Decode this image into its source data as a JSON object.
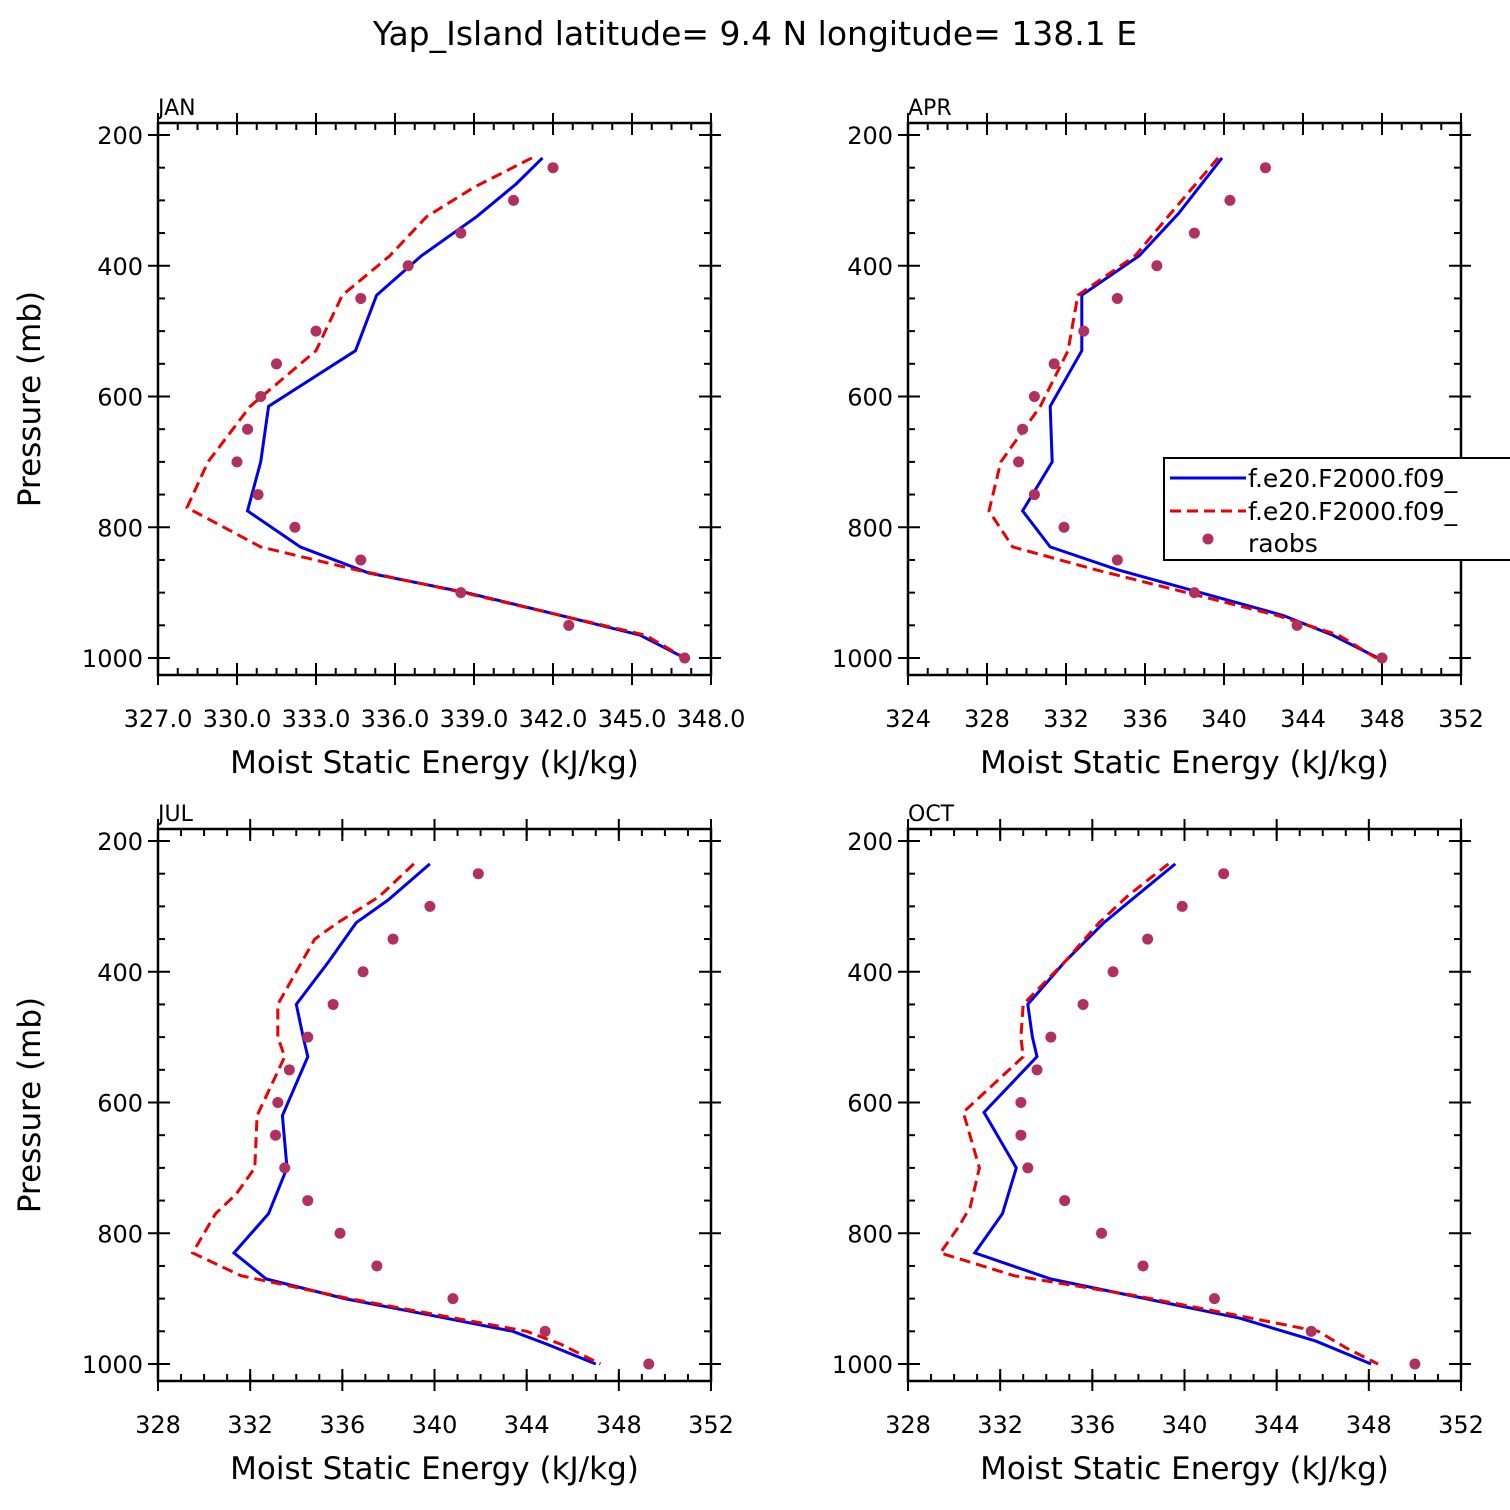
{
  "title": "Yap_Island  latitude= 9.4 N longitude= 138.1 E",
  "colors": {
    "model1": "#0000ee",
    "model2": "#ee0000",
    "raobs": "#b03060"
  },
  "legend": {
    "placement": "right-of-APR-panel",
    "entries": [
      {
        "label": "f.e20.F2000.f09_",
        "style": "solid",
        "color": "#0000ee"
      },
      {
        "label": "f.e20.F2000.f09_",
        "style": "dashed",
        "color": "#ee0000"
      },
      {
        "label": "raobs",
        "style": "dot",
        "color": "#b03060"
      }
    ]
  },
  "chart_data": [
    {
      "panel": "JAN",
      "type": "line",
      "xlabel": "Moist Static Energy (kJ/kg)",
      "ylabel": "Pressure (mb)",
      "xlim": [
        327.0,
        348.0
      ],
      "ylim": [
        1000,
        200
      ],
      "xticks": [
        "327.0",
        "330.0",
        "333.0",
        "336.0",
        "339.0",
        "342.0",
        "345.0",
        "348.0"
      ],
      "x_tick_values": [
        327,
        330,
        333,
        336,
        339,
        342,
        345,
        348
      ],
      "yticks": [
        200,
        400,
        600,
        800,
        1000
      ],
      "series": [
        {
          "style": "solid",
          "color": "#0000ee",
          "points": [
            [
              341.6,
              235
            ],
            [
              340.6,
              275
            ],
            [
              339.1,
              325
            ],
            [
              337.0,
              385
            ],
            [
              335.3,
              445
            ],
            [
              334.5,
              530
            ],
            [
              331.2,
              615
            ],
            [
              330.9,
              700
            ],
            [
              330.4,
              775
            ],
            [
              332.4,
              830
            ],
            [
              335.0,
              870
            ],
            [
              338.7,
              900
            ],
            [
              342.3,
              935
            ],
            [
              345.3,
              965
            ],
            [
              347.0,
              1000
            ]
          ]
        },
        {
          "style": "dashed",
          "color": "#ee0000",
          "points": [
            [
              341.2,
              235
            ],
            [
              339.0,
              280
            ],
            [
              337.2,
              325
            ],
            [
              335.8,
              385
            ],
            [
              334.0,
              445
            ],
            [
              333.0,
              530
            ],
            [
              330.5,
              615
            ],
            [
              328.9,
              700
            ],
            [
              328.1,
              770
            ],
            [
              330.9,
              830
            ],
            [
              334.5,
              865
            ],
            [
              338.6,
              900
            ],
            [
              342.3,
              935
            ],
            [
              345.5,
              965
            ],
            [
              347.0,
              1000
            ]
          ]
        }
      ],
      "raobs": {
        "x": [
          342.0,
          340.5,
          338.5,
          336.5,
          334.7,
          333.0,
          331.5,
          330.9,
          330.4,
          330.0,
          330.8,
          332.2,
          334.7,
          338.5,
          342.6,
          347.0
        ],
        "p": [
          250,
          300,
          350,
          400,
          450,
          500,
          550,
          600,
          650,
          700,
          750,
          800,
          850,
          900,
          950,
          1000
        ]
      }
    },
    {
      "panel": "APR",
      "type": "line",
      "xlabel": "Moist Static Energy (kJ/kg)",
      "ylabel": "",
      "xlim": [
        324,
        352
      ],
      "ylim": [
        1000,
        200
      ],
      "xticks": [
        "324",
        "328",
        "332",
        "336",
        "340",
        "344",
        "348",
        "352"
      ],
      "x_tick_values": [
        324,
        328,
        332,
        336,
        340,
        344,
        348,
        352
      ],
      "yticks": [
        200,
        400,
        600,
        800,
        1000
      ],
      "series": [
        {
          "style": "solid",
          "color": "#0000ee",
          "points": [
            [
              339.9,
              235
            ],
            [
              337.7,
              320
            ],
            [
              335.7,
              385
            ],
            [
              332.8,
              445
            ],
            [
              332.8,
              530
            ],
            [
              331.2,
              615
            ],
            [
              331.3,
              700
            ],
            [
              329.8,
              775
            ],
            [
              331.2,
              830
            ],
            [
              334.6,
              865
            ],
            [
              338.8,
              900
            ],
            [
              343.0,
              935
            ],
            [
              345.5,
              965
            ],
            [
              347.8,
              1000
            ]
          ]
        },
        {
          "style": "dashed",
          "color": "#ee0000",
          "points": [
            [
              339.7,
              235
            ],
            [
              337.3,
              320
            ],
            [
              335.5,
              385
            ],
            [
              332.6,
              445
            ],
            [
              332.1,
              530
            ],
            [
              330.7,
              615
            ],
            [
              328.7,
              700
            ],
            [
              328.1,
              775
            ],
            [
              329.3,
              830
            ],
            [
              333.5,
              865
            ],
            [
              338.1,
              900
            ],
            [
              342.7,
              935
            ],
            [
              345.8,
              965
            ],
            [
              347.7,
              1000
            ]
          ]
        }
      ],
      "raobs": {
        "x": [
          342.1,
          340.3,
          338.5,
          336.6,
          334.6,
          332.9,
          331.4,
          330.4,
          329.8,
          329.6,
          330.4,
          331.9,
          334.6,
          338.5,
          343.7,
          348.0
        ],
        "p": [
          250,
          300,
          350,
          400,
          450,
          500,
          550,
          600,
          650,
          700,
          750,
          800,
          850,
          900,
          950,
          1000
        ]
      }
    },
    {
      "panel": "JUL",
      "type": "line",
      "xlabel": "Moist Static Energy (kJ/kg)",
      "ylabel": "Pressure (mb)",
      "xlim": [
        328,
        352
      ],
      "ylim": [
        1000,
        200
      ],
      "xticks": [
        "328",
        "332",
        "336",
        "340",
        "344",
        "348",
        "352"
      ],
      "x_tick_values": [
        328,
        332,
        336,
        340,
        344,
        348,
        352
      ],
      "yticks": [
        200,
        400,
        600,
        800,
        1000
      ],
      "series": [
        {
          "style": "solid",
          "color": "#0000ee",
          "points": [
            [
              339.8,
              235
            ],
            [
              338.0,
              290
            ],
            [
              336.6,
              325
            ],
            [
              335.4,
              385
            ],
            [
              334.0,
              450
            ],
            [
              334.3,
              500
            ],
            [
              334.5,
              530
            ],
            [
              333.4,
              620
            ],
            [
              333.6,
              700
            ],
            [
              332.8,
              770
            ],
            [
              331.3,
              830
            ],
            [
              332.7,
              870
            ],
            [
              336.1,
              900
            ],
            [
              340.5,
              930
            ],
            [
              343.4,
              950
            ],
            [
              344.9,
              970
            ],
            [
              347.0,
              1000
            ]
          ]
        },
        {
          "style": "dashed",
          "color": "#ee0000",
          "points": [
            [
              339.1,
              235
            ],
            [
              337.6,
              285
            ],
            [
              335.8,
              325
            ],
            [
              334.8,
              350
            ],
            [
              333.2,
              450
            ],
            [
              333.2,
              500
            ],
            [
              333.5,
              530
            ],
            [
              332.3,
              620
            ],
            [
              332.2,
              700
            ],
            [
              331.4,
              740
            ],
            [
              330.5,
              770
            ],
            [
              329.5,
              830
            ],
            [
              331.6,
              865
            ],
            [
              336.3,
              900
            ],
            [
              340.9,
              930
            ],
            [
              344.0,
              950
            ],
            [
              345.5,
              970
            ],
            [
              347.2,
              1000
            ]
          ]
        }
      ],
      "raobs": {
        "x": [
          341.9,
          339.8,
          338.2,
          336.9,
          335.6,
          334.5,
          333.7,
          333.2,
          333.1,
          333.5,
          334.5,
          335.9,
          337.5,
          340.8,
          344.8,
          349.3
        ],
        "p": [
          250,
          300,
          350,
          400,
          450,
          500,
          550,
          600,
          650,
          700,
          750,
          800,
          850,
          900,
          950,
          1000
        ]
      }
    },
    {
      "panel": "OCT",
      "type": "line",
      "xlabel": "Moist Static Energy (kJ/kg)",
      "ylabel": "",
      "xlim": [
        328,
        352
      ],
      "ylim": [
        1000,
        200
      ],
      "xticks": [
        "328",
        "332",
        "336",
        "340",
        "344",
        "348",
        "352"
      ],
      "x_tick_values": [
        328,
        332,
        336,
        340,
        344,
        348,
        352
      ],
      "yticks": [
        200,
        400,
        600,
        800,
        1000
      ],
      "series": [
        {
          "style": "solid",
          "color": "#0000ee",
          "points": [
            [
              339.6,
              235
            ],
            [
              337.7,
              290
            ],
            [
              336.5,
              325
            ],
            [
              334.8,
              385
            ],
            [
              333.2,
              450
            ],
            [
              333.4,
              500
            ],
            [
              333.6,
              530
            ],
            [
              331.3,
              615
            ],
            [
              332.7,
              700
            ],
            [
              332.1,
              770
            ],
            [
              330.9,
              830
            ],
            [
              334.2,
              870
            ],
            [
              338.3,
              900
            ],
            [
              342.4,
              930
            ],
            [
              345.7,
              965
            ],
            [
              348.1,
              1000
            ]
          ]
        },
        {
          "style": "dashed",
          "color": "#ee0000",
          "points": [
            [
              339.3,
              235
            ],
            [
              337.5,
              285
            ],
            [
              336.3,
              325
            ],
            [
              334.8,
              385
            ],
            [
              333.0,
              450
            ],
            [
              332.9,
              500
            ],
            [
              333.0,
              530
            ],
            [
              330.4,
              615
            ],
            [
              331.1,
              700
            ],
            [
              330.7,
              760
            ],
            [
              330.2,
              790
            ],
            [
              329.4,
              830
            ],
            [
              332.6,
              865
            ],
            [
              337.8,
              895
            ],
            [
              342.2,
              925
            ],
            [
              345.8,
              950
            ],
            [
              347.0,
              975
            ],
            [
              348.4,
              1000
            ]
          ]
        }
      ],
      "raobs": {
        "x": [
          341.7,
          339.9,
          338.4,
          336.9,
          335.6,
          334.2,
          333.6,
          332.9,
          332.9,
          333.2,
          334.8,
          336.4,
          338.2,
          341.3,
          345.5,
          350.0
        ],
        "p": [
          250,
          300,
          350,
          400,
          450,
          500,
          550,
          600,
          650,
          700,
          750,
          800,
          850,
          900,
          950,
          1000
        ]
      }
    }
  ]
}
